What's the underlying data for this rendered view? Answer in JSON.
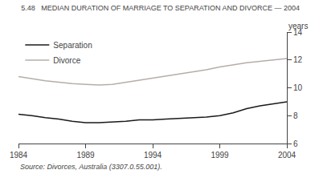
{
  "chart_data": {
    "type": "line",
    "title": "5.48   MEDIAN DURATION OF MARRIAGE TO SEPARATION AND DIVORCE — 2004",
    "source": "Source: Divorces, Australia (3307.0.55.001).",
    "ylabel": "years",
    "x": [
      1984,
      1985,
      1986,
      1987,
      1988,
      1989,
      1990,
      1991,
      1992,
      1993,
      1994,
      1995,
      1996,
      1997,
      1998,
      1999,
      2000,
      2001,
      2002,
      2003,
      2004
    ],
    "series": [
      {
        "name": "Separation",
        "color": "#1a1a1a",
        "values": [
          8.1,
          8.0,
          7.85,
          7.75,
          7.6,
          7.5,
          7.5,
          7.55,
          7.6,
          7.7,
          7.7,
          7.75,
          7.8,
          7.85,
          7.9,
          8.0,
          8.2,
          8.5,
          8.7,
          8.85,
          9.0
        ]
      },
      {
        "name": "Divorce",
        "color": "#b5aeaa",
        "values": [
          10.8,
          10.65,
          10.5,
          10.4,
          10.3,
          10.25,
          10.2,
          10.25,
          10.4,
          10.55,
          10.7,
          10.85,
          11.0,
          11.15,
          11.3,
          11.5,
          11.65,
          11.8,
          11.9,
          12.0,
          12.1
        ]
      }
    ],
    "xlim": [
      1984,
      2004
    ],
    "ylim": [
      6,
      14
    ],
    "xticks": [
      1984,
      1989,
      1994,
      1999,
      2004
    ],
    "yticks": [
      6,
      8,
      10,
      12,
      14
    ],
    "legend": "upper left",
    "grid": false
  }
}
